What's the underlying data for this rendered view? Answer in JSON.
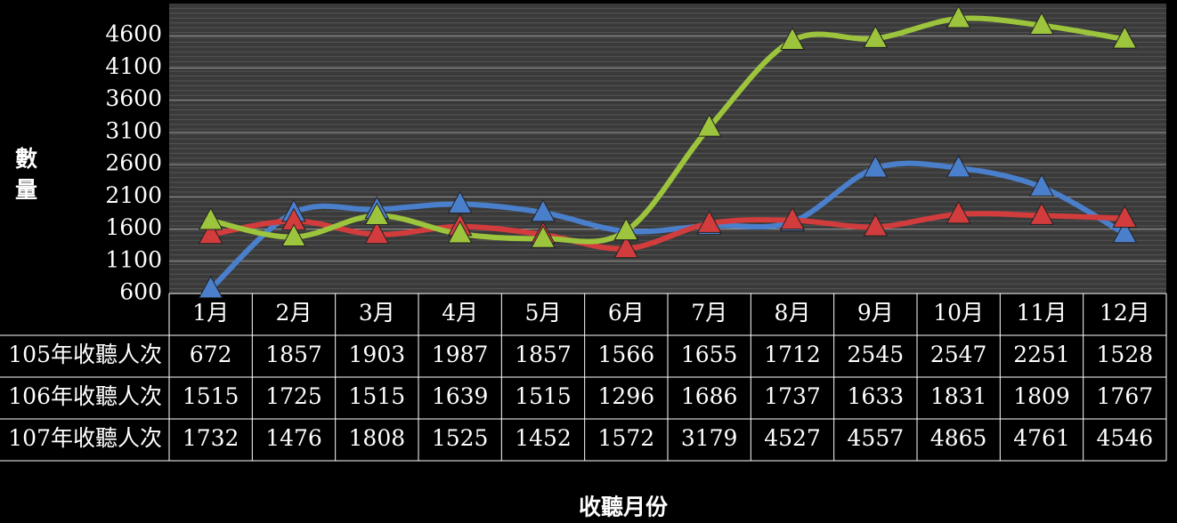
{
  "chart_data": {
    "type": "line",
    "y_axis_label": "數量",
    "x_axis_label": "收聽月份",
    "categories": [
      "1月",
      "2月",
      "3月",
      "4月",
      "5月",
      "6月",
      "7月",
      "8月",
      "9月",
      "10月",
      "11月",
      "12月"
    ],
    "series": [
      {
        "name": "105年收聽人次",
        "color": "#4a7fcc",
        "values": [
          672,
          1857,
          1903,
          1987,
          1857,
          1566,
          1655,
          1712,
          2545,
          2547,
          2251,
          1528
        ]
      },
      {
        "name": "106年收聽人次",
        "color": "#d23c3c",
        "values": [
          1515,
          1725,
          1515,
          1639,
          1515,
          1296,
          1686,
          1737,
          1633,
          1831,
          1809,
          1767
        ]
      },
      {
        "name": "107年收聽人次",
        "color": "#9cc43c",
        "values": [
          1732,
          1476,
          1808,
          1525,
          1452,
          1572,
          3179,
          4527,
          4557,
          4865,
          4761,
          4546
        ]
      }
    ],
    "ylim": [
      600,
      5100
    ],
    "yticks": [
      600,
      1100,
      1600,
      2100,
      2600,
      3100,
      3600,
      4100,
      4600
    ],
    "grid": true
  }
}
